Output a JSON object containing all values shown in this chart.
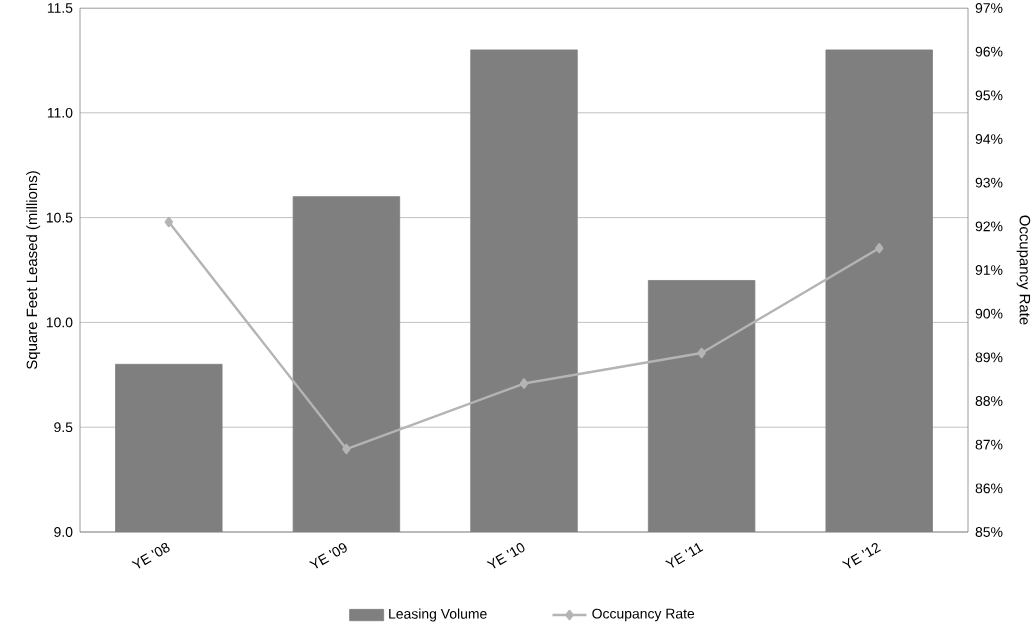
{
  "chart_data": {
    "type": "bar",
    "categories": [
      "YE '08",
      "YE '09",
      "YE '10",
      "YE '11",
      "YE '12"
    ],
    "series": [
      {
        "name": "Leasing Volume",
        "color": "#7f7f7f",
        "values": [
          9.8,
          10.6,
          11.3,
          10.2,
          11.3
        ]
      },
      {
        "name": "Occupancy Rate",
        "type": "line",
        "axis": "y2",
        "color": "#b4b4b4",
        "marker": "diamond",
        "values": [
          92.1,
          86.9,
          88.4,
          89.1,
          91.5
        ]
      }
    ],
    "ylabel": "Square Feet Leased (millions)",
    "y2label": "Occupancy Rate",
    "ylim": [
      9.0,
      11.5
    ],
    "yticks": [
      {
        "value": 9.0,
        "label": "9.0"
      },
      {
        "value": 9.5,
        "label": "9.5"
      },
      {
        "value": 10.0,
        "label": "10.0"
      },
      {
        "value": 10.5,
        "label": "10.5"
      },
      {
        "value": 11.0,
        "label": "11.0"
      },
      {
        "value": 11.5,
        "label": "11.5"
      }
    ],
    "y2lim": [
      85,
      97
    ],
    "y2ticks": [
      {
        "value": 85,
        "label": "85%"
      },
      {
        "value": 86,
        "label": "86%"
      },
      {
        "value": 87,
        "label": "87%"
      },
      {
        "value": 88,
        "label": "88%"
      },
      {
        "value": 89,
        "label": "89%"
      },
      {
        "value": 90,
        "label": "90%"
      },
      {
        "value": 91,
        "label": "91%"
      },
      {
        "value": 92,
        "label": "92%"
      },
      {
        "value": 93,
        "label": "93%"
      },
      {
        "value": 94,
        "label": "94%"
      },
      {
        "value": 95,
        "label": "95%"
      },
      {
        "value": 96,
        "label": "96%"
      },
      {
        "value": 97,
        "label": "97%"
      }
    ],
    "grid": "y",
    "legend": "bottom"
  }
}
